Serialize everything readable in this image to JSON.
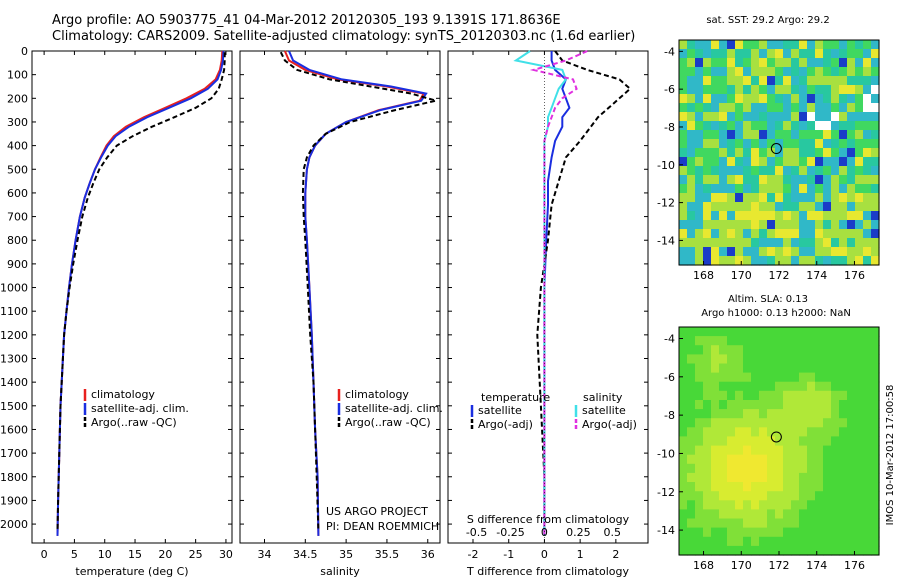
{
  "header": {
    "line1": "Argo profile: AO 5903775_41 04-Mar-2012 20120305_193 9.1391S 171.8636E",
    "line2": "Climatology: CARS2009. Satellite-adjusted climatology: synTS_20120303.nc (1.6d earlier)"
  },
  "colors": {
    "climatology": "#e8201e",
    "satellite": "#1a2ee0",
    "argo": "#000000",
    "salinity_satellite": "#40e0e8",
    "salinity_argo": "#e030e0"
  },
  "chart_data": [
    {
      "type": "line",
      "name": "temperature-profile",
      "xlabel": "temperature (deg C)",
      "ylabel": "",
      "xlim": [
        -2,
        31
      ],
      "ylim": [
        2080,
        0
      ],
      "xticks": [
        "0",
        "5",
        "10",
        "15",
        "20",
        "25",
        "30"
      ],
      "xtick_values": [
        0,
        5,
        10,
        15,
        20,
        25,
        30
      ],
      "yticks": [
        "0",
        "100",
        "200",
        "300",
        "400",
        "500",
        "600",
        "700",
        "800",
        "900",
        "1000",
        "1100",
        "1200",
        "1300",
        "1400",
        "1500",
        "1600",
        "1700",
        "1800",
        "1900",
        "2000"
      ],
      "legend": {
        "placement": "center",
        "entries": [
          "climatology",
          "satellite-adj. clim.",
          "Argo(..raw -QC)"
        ]
      },
      "series": [
        {
          "name": "climatology",
          "style": "solid",
          "color": "#e8201e",
          "x": [
            29.4,
            29.3,
            29.0,
            28.3,
            26.5,
            23.5,
            20.0,
            16.5,
            13.5,
            11.5,
            10.3,
            9.3,
            8.4,
            7.5,
            6.7,
            5.9,
            5.2,
            4.6,
            4.1,
            3.7,
            3.3,
            3.0,
            2.7,
            2.5,
            2.3,
            2.2
          ],
          "y": [
            0,
            40,
            80,
            120,
            160,
            200,
            240,
            280,
            320,
            360,
            400,
            450,
            500,
            560,
            620,
            700,
            800,
            900,
            1000,
            1100,
            1200,
            1350,
            1500,
            1700,
            1900,
            2050
          ]
        },
        {
          "name": "satellite-adj. clim.",
          "style": "solid",
          "color": "#1a2ee0",
          "x": [
            29.6,
            29.5,
            29.2,
            28.6,
            27.0,
            24.2,
            20.6,
            17.0,
            14.0,
            11.8,
            10.5,
            9.4,
            8.4,
            7.5,
            6.7,
            5.9,
            5.2,
            4.6,
            4.1,
            3.7,
            3.3,
            3.0,
            2.7,
            2.5,
            2.3,
            2.2
          ],
          "y": [
            0,
            40,
            80,
            120,
            160,
            200,
            240,
            280,
            320,
            360,
            400,
            450,
            500,
            560,
            620,
            700,
            800,
            900,
            1000,
            1100,
            1200,
            1350,
            1500,
            1700,
            1900,
            2050
          ]
        },
        {
          "name": "Argo(..raw -QC)",
          "style": "dashed",
          "color": "#000000",
          "x": [
            29.8,
            29.8,
            29.7,
            29.3,
            28.8,
            27.6,
            25.0,
            21.5,
            17.8,
            14.6,
            12.0,
            10.4,
            9.1,
            8.1,
            7.2,
            6.3,
            5.5,
            4.8,
            4.2,
            3.7,
            3.3,
            3.0,
            2.7,
            2.5,
            2.3,
            2.2
          ],
          "y": [
            5,
            40,
            80,
            120,
            160,
            200,
            240,
            280,
            320,
            360,
            400,
            450,
            500,
            560,
            620,
            700,
            800,
            900,
            1000,
            1100,
            1200,
            1350,
            1500,
            1700,
            1900,
            2030
          ]
        }
      ]
    },
    {
      "type": "line",
      "name": "salinity-profile",
      "xlabel": "salinity",
      "xlim": [
        33.7,
        36.15
      ],
      "ylim": [
        2080,
        0
      ],
      "xticks": [
        "34",
        "34.5",
        "35",
        "35.5",
        "36"
      ],
      "xtick_values": [
        34,
        34.5,
        35,
        35.5,
        36
      ],
      "legend": {
        "placement": "center-right",
        "entries": [
          "climatology",
          "satellite-adj. clim.",
          "Argo(..raw -QC)"
        ]
      },
      "series": [
        {
          "name": "climatology",
          "style": "solid",
          "color": "#e8201e",
          "x": [
            34.25,
            34.3,
            34.5,
            34.9,
            35.5,
            35.95,
            35.9,
            35.4,
            35.0,
            34.75,
            34.62,
            34.55,
            34.52,
            34.5,
            34.5,
            34.52,
            34.55,
            34.58,
            34.6,
            34.62,
            34.65,
            34.66
          ],
          "y": [
            0,
            40,
            80,
            120,
            150,
            180,
            210,
            250,
            300,
            350,
            400,
            450,
            500,
            600,
            700,
            800,
            1000,
            1200,
            1400,
            1600,
            1800,
            2050
          ]
        },
        {
          "name": "satellite-adj. clim.",
          "style": "solid",
          "color": "#1a2ee0",
          "x": [
            34.3,
            34.35,
            34.55,
            34.95,
            35.55,
            35.98,
            35.92,
            35.42,
            35.0,
            34.75,
            34.62,
            34.55,
            34.52,
            34.5,
            34.5,
            34.52,
            34.55,
            34.58,
            34.6,
            34.62,
            34.65,
            34.66
          ],
          "y": [
            0,
            40,
            80,
            120,
            150,
            180,
            210,
            250,
            300,
            350,
            400,
            450,
            500,
            600,
            700,
            800,
            1000,
            1200,
            1400,
            1600,
            1800,
            2050
          ]
        },
        {
          "name": "Argo(..raw -QC)",
          "style": "dashed",
          "color": "#000000",
          "x": [
            34.2,
            34.25,
            34.4,
            34.8,
            35.3,
            35.8,
            36.1,
            35.6,
            35.05,
            34.75,
            34.6,
            34.52,
            34.48,
            34.47,
            34.48,
            34.5,
            34.53,
            34.56,
            34.6,
            34.62,
            34.64,
            34.66
          ],
          "y": [
            5,
            40,
            80,
            120,
            150,
            180,
            210,
            250,
            300,
            350,
            400,
            450,
            500,
            600,
            700,
            800,
            1000,
            1200,
            1400,
            1600,
            1800,
            2030
          ]
        }
      ]
    },
    {
      "type": "line",
      "name": "difference-profile",
      "xlabel": "T difference from climatology",
      "xlabel_top": "S difference from climatology",
      "xlim": [
        -2.7,
        2.9
      ],
      "ylim": [
        2080,
        0
      ],
      "xticks": [
        "-2",
        "-1",
        "0",
        "1",
        "2"
      ],
      "xtick_values": [
        -2,
        -1,
        0,
        1,
        2
      ],
      "xticks_top": [
        "-0.5",
        "-0.25",
        "0",
        "0.25",
        "0.5"
      ],
      "xtick_top_values": [
        -1.9,
        -0.95,
        0,
        0.95,
        1.9
      ],
      "legend": {
        "placement": "center",
        "entries": [
          "temperature",
          "satellite",
          "Argo(-adj)",
          "salinity",
          "satellite",
          "Argo(-adj)"
        ]
      },
      "series": [
        {
          "name": "temperature satellite",
          "style": "solid",
          "color": "#1a2ee0",
          "x": [
            0.2,
            0.2,
            0.3,
            0.6,
            0.5,
            0.6,
            0.7,
            0.5,
            0.5,
            0.3,
            0.2,
            0.1,
            0.1,
            0.05,
            0.0,
            0.0,
            0.0,
            0.0,
            0.0
          ],
          "y": [
            0,
            40,
            80,
            120,
            160,
            200,
            240,
            280,
            320,
            380,
            450,
            550,
            650,
            800,
            1000,
            1200,
            1500,
            1800,
            2050
          ]
        },
        {
          "name": "temperature Argo(-adj)",
          "style": "dashed",
          "color": "#000000",
          "x": [
            0.3,
            0.5,
            1.2,
            2.1,
            2.4,
            2.1,
            1.8,
            1.5,
            1.3,
            1.0,
            0.6,
            0.4,
            0.2,
            0.1,
            -0.1,
            -0.2,
            -0.1,
            0.0,
            0.0
          ],
          "y": [
            0,
            40,
            80,
            120,
            160,
            200,
            240,
            280,
            320,
            380,
            450,
            550,
            650,
            800,
            1000,
            1200,
            1500,
            1800,
            2050
          ]
        },
        {
          "name": "salinity satellite",
          "style": "solid",
          "color": "#40e0e8",
          "x": [
            -0.4,
            -0.8,
            0.5,
            0.6,
            0.4,
            0.3,
            0.2,
            0.1,
            0.1,
            0.0,
            0.0,
            0.0,
            0.0,
            0.0,
            0.0,
            0.0,
            0.0,
            0.0,
            0.0
          ],
          "y": [
            0,
            40,
            80,
            120,
            160,
            200,
            240,
            280,
            320,
            380,
            450,
            550,
            650,
            800,
            1000,
            1200,
            1500,
            1800,
            2050
          ]
        },
        {
          "name": "salinity Argo(-adj)",
          "style": "dashed",
          "color": "#e030e0",
          "x": [
            1.2,
            0.6,
            -0.3,
            0.8,
            0.9,
            0.5,
            0.3,
            0.2,
            0.1,
            0.0,
            0.0,
            0.0,
            0.0,
            0.0,
            0.0,
            0.0,
            0.0,
            0.0,
            0.0
          ],
          "y": [
            0,
            40,
            80,
            120,
            160,
            200,
            240,
            280,
            320,
            380,
            450,
            550,
            650,
            800,
            1000,
            1200,
            1500,
            1800,
            2050
          ]
        }
      ]
    },
    {
      "type": "heatmap",
      "name": "sst-map",
      "title": "sat. SST: 29.2  Argo: 29.2",
      "xticks": [
        "168",
        "170",
        "172",
        "174",
        "176"
      ],
      "xtick_values": [
        168,
        170,
        172,
        174,
        176
      ],
      "yticks": [
        "-4",
        "-6",
        "-8",
        "-10",
        "-12",
        "-14"
      ],
      "ytick_values": [
        -4,
        -6,
        -8,
        -10,
        -12,
        -14
      ],
      "xlim": [
        166.7,
        177.3
      ],
      "ylim": [
        -15.3,
        -3.4
      ],
      "float_position": [
        171.86,
        -9.14
      ]
    },
    {
      "type": "heatmap",
      "name": "sla-map",
      "title_line1": "Altim. SLA: 0.13",
      "title_line2": "Argo h1000: 0.13 h2000: NaN",
      "xticks": [
        "168",
        "170",
        "172",
        "174",
        "176"
      ],
      "xtick_values": [
        168,
        170,
        172,
        174,
        176
      ],
      "yticks": [
        "-4",
        "-6",
        "-8",
        "-10",
        "-12",
        "-14"
      ],
      "ytick_values": [
        -4,
        -6,
        -8,
        -10,
        -12,
        -14
      ],
      "xlim": [
        166.7,
        177.3
      ],
      "ylim": [
        -15.3,
        -3.4
      ],
      "float_position": [
        171.86,
        -9.14
      ]
    }
  ],
  "annotations": {
    "project": "US ARGO PROJECT",
    "pi": "PI: DEAN ROEMMICH",
    "imos": "IMOS 10-Mar-2012 17:00:58"
  }
}
